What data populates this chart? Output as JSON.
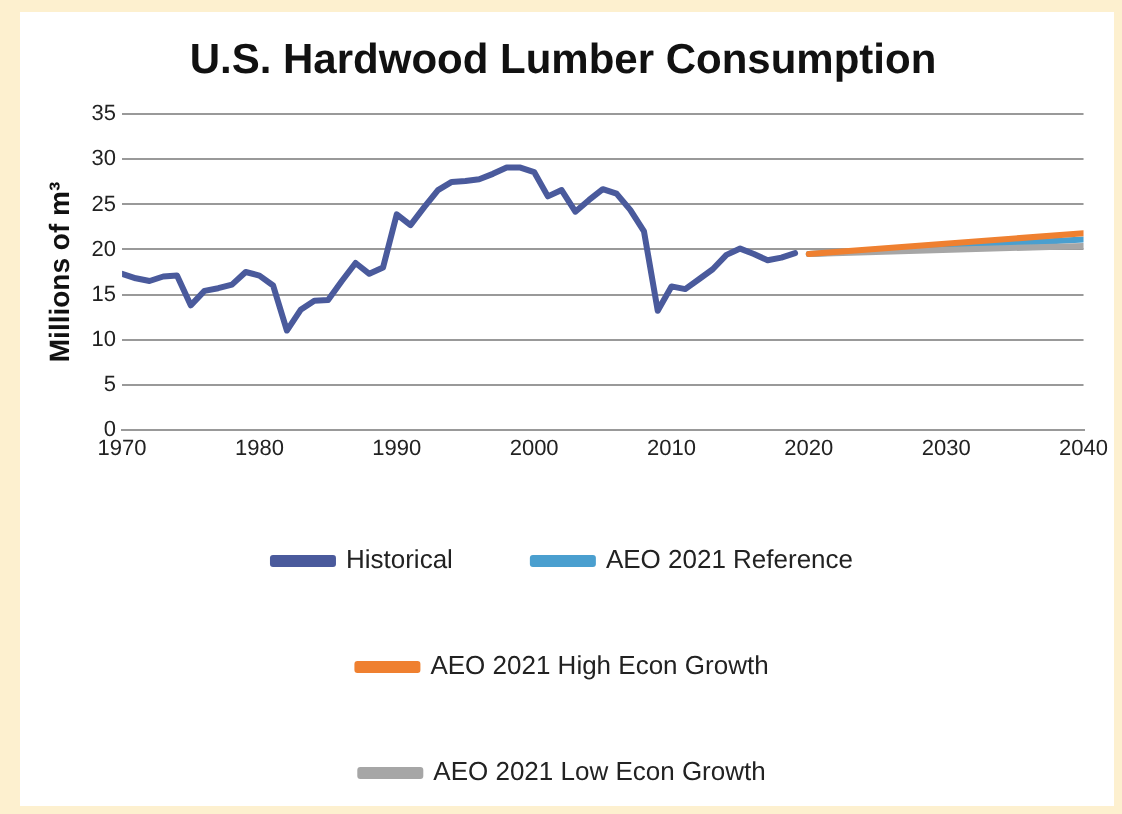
{
  "chart_data": {
    "type": "line",
    "title": "U.S. Hardwood Lumber Consumption",
    "ylabel": "Millions of m³",
    "xlim": [
      1970,
      2040
    ],
    "xticks": [
      1970,
      1980,
      1990,
      2000,
      2010,
      2020,
      2030,
      2040
    ],
    "ylim": [
      0,
      35
    ],
    "yticks": [
      0,
      5,
      10,
      15,
      20,
      25,
      30,
      35
    ],
    "grid": "y",
    "legend": "bottom",
    "marker": "none",
    "line_style": "solid",
    "series": [
      {
        "name": "Historical",
        "color": "#4a5a9c",
        "x": [
          1970,
          1971,
          1972,
          1973,
          1974,
          1975,
          1976,
          1977,
          1978,
          1979,
          1980,
          1981,
          1982,
          1983,
          1984,
          1985,
          1986,
          1987,
          1988,
          1989,
          1990,
          1991,
          1992,
          1993,
          1994,
          1995,
          1996,
          1997,
          1998,
          1999,
          2000,
          2001,
          2002,
          2003,
          2004,
          2005,
          2006,
          2007,
          2008,
          2009,
          2010,
          2011,
          2012,
          2013,
          2014,
          2015,
          2016,
          2017,
          2018,
          2019
        ],
        "values": [
          17.3,
          16.8,
          16.5,
          17.0,
          17.1,
          13.8,
          15.4,
          15.7,
          16.1,
          17.5,
          17.1,
          16.0,
          11.0,
          13.3,
          14.3,
          14.4,
          16.5,
          18.5,
          17.3,
          18.0,
          23.9,
          22.7,
          24.7,
          26.6,
          27.5,
          27.6,
          27.8,
          28.4,
          29.1,
          29.1,
          28.6,
          25.9,
          26.6,
          24.2,
          25.5,
          26.7,
          26.2,
          24.4,
          22.0,
          13.2,
          15.9,
          15.6,
          16.7,
          17.8,
          19.4,
          20.1,
          19.5,
          18.8,
          19.1,
          19.6
        ]
      },
      {
        "name": "AEO 2021 Reference",
        "color": "#4a9fcf",
        "x": [
          2020,
          2040
        ],
        "values": [
          19.5,
          21.1
        ]
      },
      {
        "name": "AEO 2021 High Econ Growth",
        "color": "#ef8030",
        "x": [
          2020,
          2040
        ],
        "values": [
          19.5,
          21.8
        ]
      },
      {
        "name": "AEO 2021 Low Econ Growth",
        "color": "#a6a6a6",
        "x": [
          2020,
          2040
        ],
        "values": [
          19.5,
          20.4
        ]
      }
    ]
  }
}
